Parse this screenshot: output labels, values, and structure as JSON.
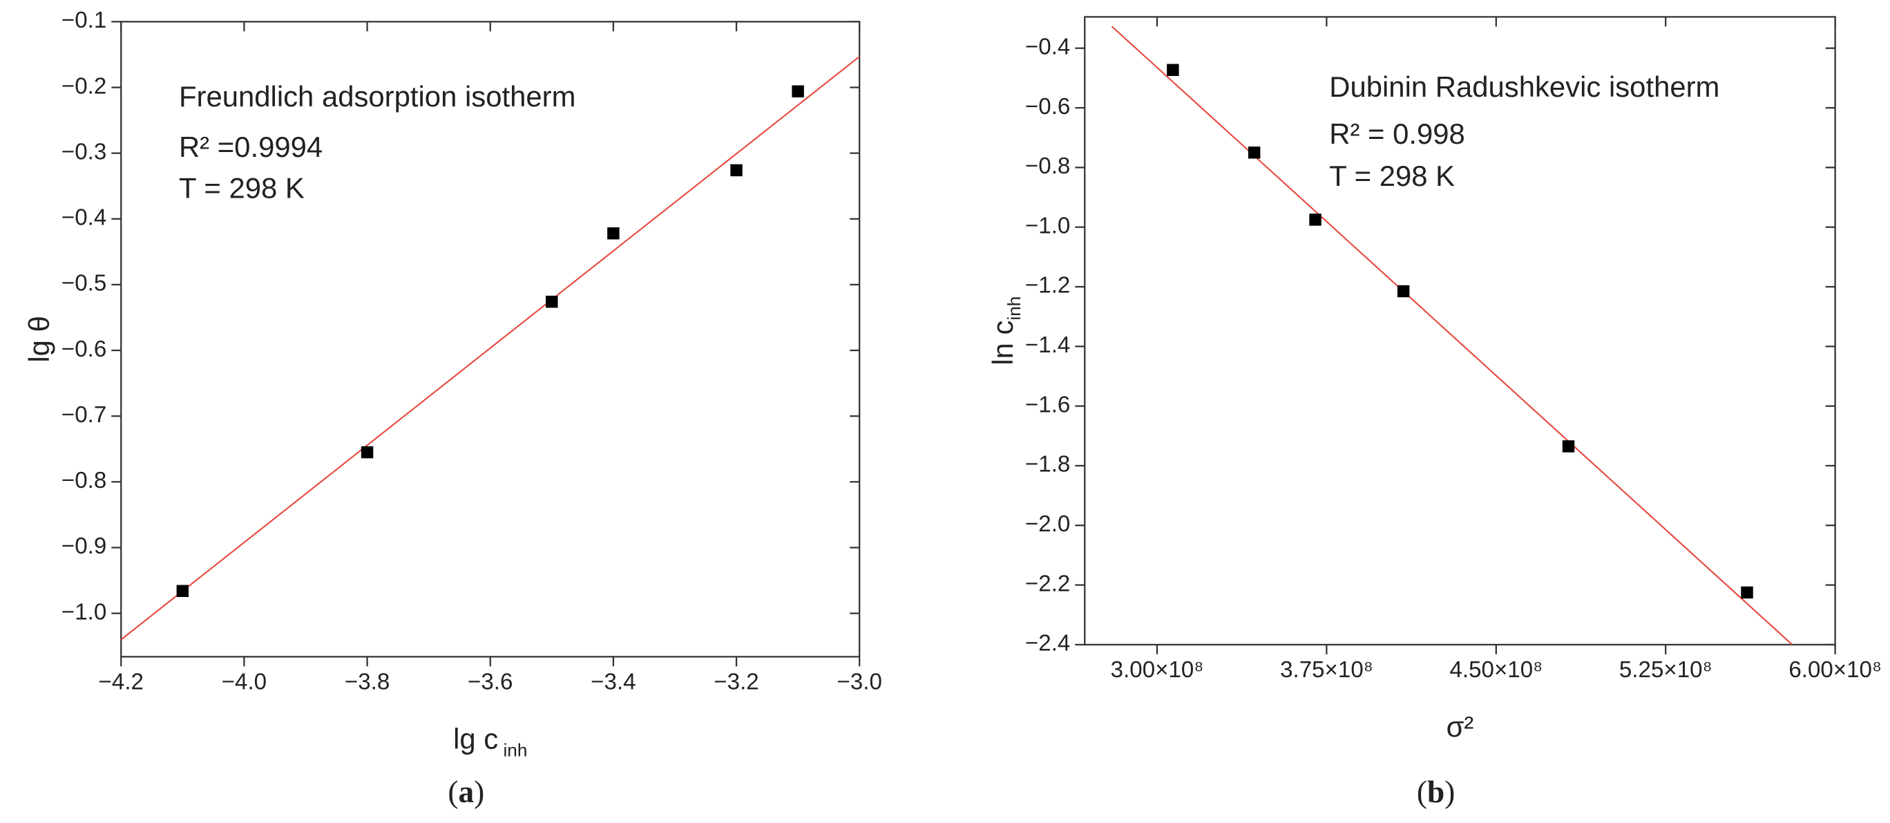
{
  "chart_data": [
    {
      "type": "scatter",
      "annotation": [
        [
          {
            "text": "Freundlich adsorption isotherm"
          }
        ],
        [
          {
            "text": "R² =0.9994"
          }
        ],
        [
          {
            "text": "T = 298 K"
          }
        ]
      ],
      "x_label": [
        {
          "text": "lg c"
        },
        {
          "text": " inh",
          "sub": true
        }
      ],
      "y_label": [
        {
          "text": "lg θ"
        }
      ],
      "caption": [
        {
          "text": "("
        },
        {
          "text": "a",
          "bold": true
        },
        {
          "text": ")"
        }
      ],
      "x": [
        -4.1,
        -3.8,
        -3.5,
        -3.4,
        -3.2,
        -3.1
      ],
      "values": [
        -0.966,
        -0.755,
        -0.526,
        -0.422,
        -0.326,
        -0.206
      ],
      "color": "#000000",
      "fit": {
        "color": "#e8473c",
        "x": [
          -4.2,
          -3.0
        ],
        "y": [
          -1.04,
          -0.153
        ]
      },
      "xlim": [
        -4.2,
        -3.0
      ],
      "xticks": [
        {
          "value": -4.2,
          "label": "−4.2"
        },
        {
          "value": -4.0,
          "label": "−4.0"
        },
        {
          "value": -3.8,
          "label": "−3.8"
        },
        {
          "value": -3.6,
          "label": "−3.6"
        },
        {
          "value": -3.4,
          "label": "−3.4"
        },
        {
          "value": -3.2,
          "label": "−3.2"
        },
        {
          "value": -3.0,
          "label": "−3.0"
        }
      ],
      "ylim": [
        -1.066,
        -0.1
      ],
      "yticks": [
        {
          "value": -1.0,
          "label": "−1.0"
        },
        {
          "value": -0.9,
          "label": "−0.9"
        },
        {
          "value": -0.8,
          "label": "−0.8"
        },
        {
          "value": -0.7,
          "label": "−0.7"
        },
        {
          "value": -0.6,
          "label": "−0.6"
        },
        {
          "value": -0.5,
          "label": "−0.5"
        },
        {
          "value": -0.4,
          "label": "−0.4"
        },
        {
          "value": -0.3,
          "label": "−0.3"
        },
        {
          "value": -0.2,
          "label": "−0.2"
        },
        {
          "value": -0.1,
          "label": "−0.1"
        }
      ],
      "grid": false
    },
    {
      "type": "scatter",
      "annotation": [
        [
          {
            "text": "Dubinin Radushkevic isotherm"
          }
        ],
        [
          {
            "text": "R² = 0.998"
          }
        ],
        [
          {
            "text": "T = 298 K"
          }
        ]
      ],
      "x_label": [
        {
          "text": "σ²"
        }
      ],
      "y_label": [
        {
          "text": "ln c"
        },
        {
          "text": "inh",
          "sub": true
        }
      ],
      "caption": [
        {
          "text": "("
        },
        {
          "text": "b",
          "bold": true
        },
        {
          "text": ")"
        }
      ],
      "x": [
        307000000,
        343000000,
        370000000,
        409000000,
        482000000,
        561000000
      ],
      "values": [
        -0.473,
        -0.75,
        -0.975,
        -1.215,
        -1.735,
        -2.225
      ],
      "color": "#000000",
      "fit": {
        "color": "#e8473c",
        "x": [
          280000000,
          581000000
        ],
        "y": [
          -0.327,
          -2.4
        ]
      },
      "xlim": [
        268000000,
        600000000
      ],
      "xticks": [
        {
          "value": 300000000,
          "label": "3.00×10⁸"
        },
        {
          "value": 375000000,
          "label": "3.75×10⁸"
        },
        {
          "value": 450000000,
          "label": "4.50×10⁸"
        },
        {
          "value": 525000000,
          "label": "5.25×10⁸"
        },
        {
          "value": 600000000,
          "label": "6.00×10⁸"
        }
      ],
      "ylim": [
        -2.4,
        -0.295
      ],
      "yticks": [
        {
          "value": -2.4,
          "label": "−2.4"
        },
        {
          "value": -2.2,
          "label": "−2.2"
        },
        {
          "value": -2.0,
          "label": "−2.0"
        },
        {
          "value": -1.8,
          "label": "−1.8"
        },
        {
          "value": -1.6,
          "label": "−1.6"
        },
        {
          "value": -1.4,
          "label": "−1.4"
        },
        {
          "value": -1.2,
          "label": "−1.2"
        },
        {
          "value": -1.0,
          "label": "−1.0"
        },
        {
          "value": -0.8,
          "label": "−0.8"
        },
        {
          "value": -0.6,
          "label": "−0.6"
        },
        {
          "value": -0.4,
          "label": "−0.4"
        }
      ],
      "grid": false
    }
  ]
}
